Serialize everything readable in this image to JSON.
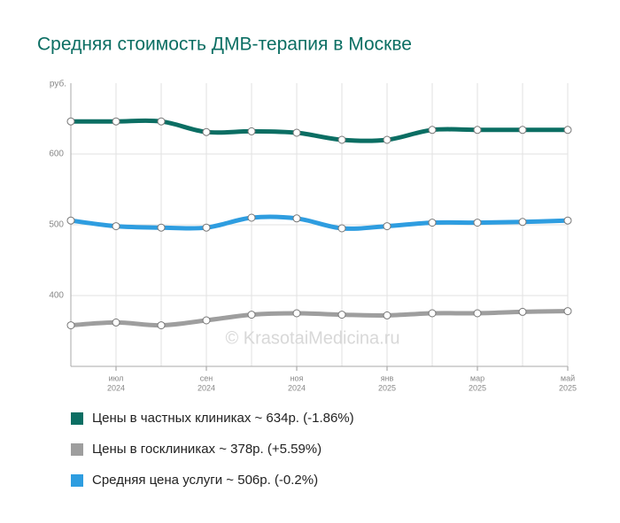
{
  "chart_data": {
    "type": "line",
    "title": "Средняя стоимость ДМВ-терапия в Москве",
    "y_label": "руб.",
    "watermark": "© KrasotaiMedicina.ru",
    "categories": [
      null,
      "июл",
      null,
      "сен",
      null,
      "ноя",
      null,
      "янв",
      null,
      "мар",
      null,
      "май"
    ],
    "category_years": [
      null,
      "2024",
      null,
      "2024",
      null,
      "2024",
      null,
      "2025",
      null,
      "2025",
      null,
      "2025"
    ],
    "ylim": [
      300,
      700
    ],
    "yticks": [
      400,
      500,
      600
    ],
    "grid": true,
    "series": [
      {
        "name": "Цены в частных клиниках ~ 634р. (-1.86%)",
        "color": "#0b6e63",
        "values": [
          646,
          646,
          646,
          631,
          632,
          630,
          620,
          620,
          634,
          634,
          634,
          634
        ]
      },
      {
        "name": "Цены в госклиниках ~ 378р. (+5.59%)",
        "color": "#9e9e9e",
        "values": [
          358,
          362,
          358,
          365,
          373,
          375,
          373,
          372,
          375,
          375,
          377,
          378
        ]
      },
      {
        "name": "Средняя цена услуги ~ 506р. (-0.2%)",
        "color": "#2e9de0",
        "values": [
          506,
          498,
          496,
          496,
          510,
          509,
          495,
          498,
          503,
          503,
          504,
          506
        ]
      }
    ]
  }
}
